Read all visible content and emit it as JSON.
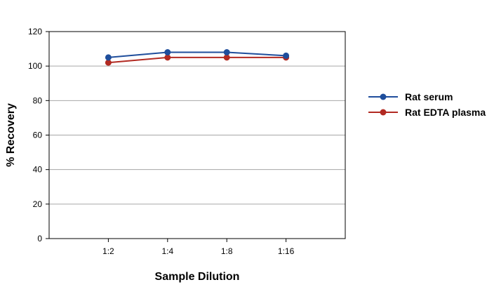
{
  "chart_data": {
    "type": "line",
    "categories": [
      "1:2",
      "1:4",
      "1:8",
      "1:16"
    ],
    "series": [
      {
        "name": "Rat serum",
        "values": [
          105,
          108,
          108,
          106
        ],
        "color": "#1f4e9c"
      },
      {
        "name": "Rat EDTA plasma",
        "values": [
          102,
          105,
          105,
          105
        ],
        "color": "#b22a22"
      }
    ],
    "xlabel": "Sample Dilution",
    "ylabel": "% Recovery",
    "ylim": [
      0,
      120
    ],
    "yticks": [
      "0",
      "20",
      "40",
      "60",
      "80",
      "100",
      "120"
    ],
    "grid": true,
    "legend_position": "right"
  }
}
